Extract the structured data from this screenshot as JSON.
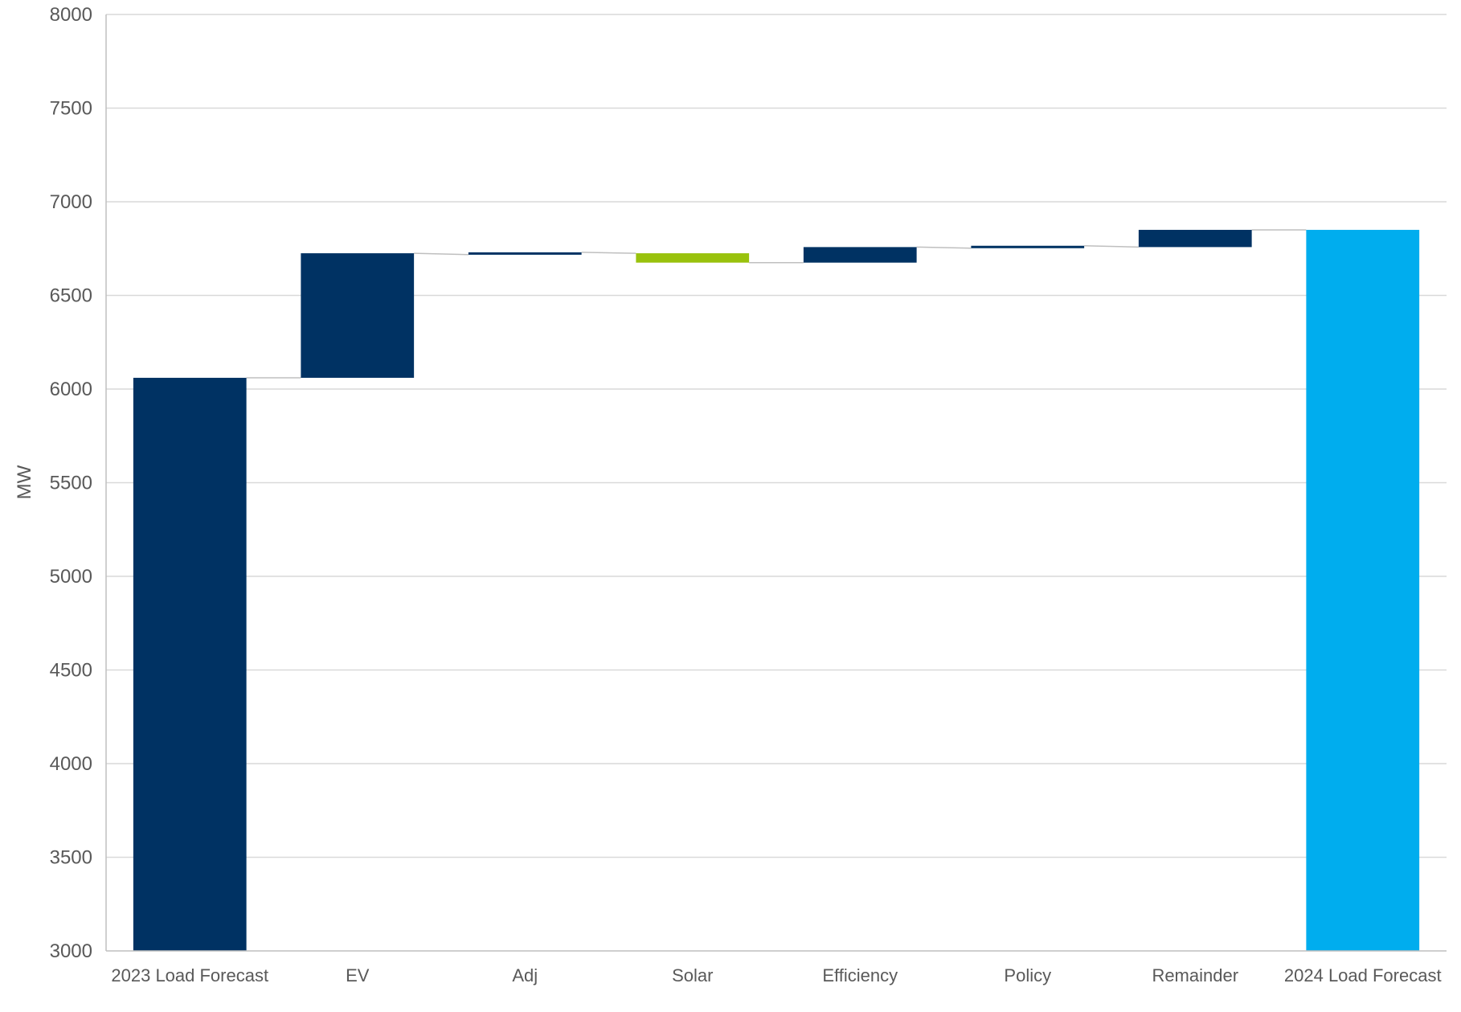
{
  "chart_data": {
    "type": "bar",
    "subtype": "waterfall",
    "title": "",
    "xlabel": "",
    "ylabel": "MW",
    "ylim": [
      3000,
      8000
    ],
    "yticks": [
      3000,
      3500,
      4000,
      4500,
      5000,
      5500,
      6000,
      6500,
      7000,
      7500,
      8000
    ],
    "grid": true,
    "legend": "none",
    "categories": [
      "2023 Load Forecast",
      "EV",
      "Adj",
      "Solar",
      "Efficiency",
      "Policy",
      "Remainder",
      "2024 Load Forecast"
    ],
    "bars": [
      {
        "category": "2023 Load Forecast",
        "kind": "total",
        "start": 3000,
        "end": 6060
      },
      {
        "category": "EV",
        "kind": "increase",
        "start": 6060,
        "end": 6725
      },
      {
        "category": "Adj",
        "kind": "increase",
        "start": 6718,
        "end": 6730
      },
      {
        "category": "Solar",
        "kind": "decrease",
        "start": 6725,
        "end": 6675
      },
      {
        "category": "Efficiency",
        "kind": "increase",
        "start": 6675,
        "end": 6758
      },
      {
        "category": "Policy",
        "kind": "increase",
        "start": 6752,
        "end": 6765
      },
      {
        "category": "Remainder",
        "kind": "increase",
        "start": 6758,
        "end": 6850
      },
      {
        "category": "2024 Load Forecast",
        "kind": "total",
        "start": 3000,
        "end": 6850
      }
    ],
    "colors": {
      "total_start": "#003263",
      "increase": "#003263",
      "decrease": "#99c20d",
      "total_end": "#00adee"
    }
  }
}
